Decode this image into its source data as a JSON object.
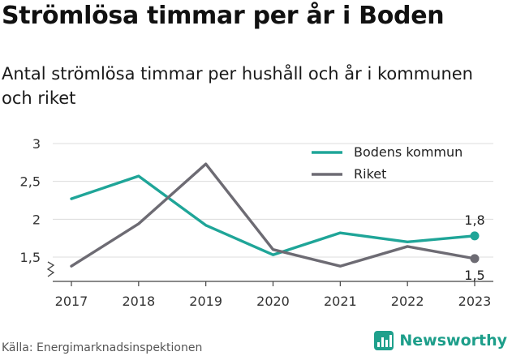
{
  "title": "Strömlösa timmar per år i Boden",
  "subtitle": "Antal strömlösa timmar per hushåll och år i kommunen och riket",
  "source": "Källa: Energimarknadsinspektionen",
  "brand": {
    "name": "Newsworthy",
    "icon": "newsworthy-logo-icon",
    "color": "#1fa08c"
  },
  "chart_data": {
    "type": "line",
    "x": [
      "2017",
      "2018",
      "2019",
      "2020",
      "2021",
      "2022",
      "2023"
    ],
    "ylim": [
      1.25,
      3
    ],
    "yticks": [
      1.5,
      2,
      2.5,
      3
    ],
    "ytick_labels": [
      "1,5",
      "2",
      "2,5",
      "3"
    ],
    "grid": true,
    "axis_break": true,
    "legend_position": "top-right",
    "series": [
      {
        "name": "Bodens kommun",
        "color": "#1fa598",
        "values": [
          2.27,
          2.57,
          1.92,
          1.53,
          1.82,
          1.7,
          1.78
        ],
        "end_label": "1,8",
        "end_label_position": "above"
      },
      {
        "name": "Riket",
        "color": "#6d6b73",
        "values": [
          1.38,
          1.94,
          2.73,
          1.6,
          1.38,
          1.64,
          1.48
        ],
        "end_label": "1,5",
        "end_label_position": "below"
      }
    ]
  }
}
